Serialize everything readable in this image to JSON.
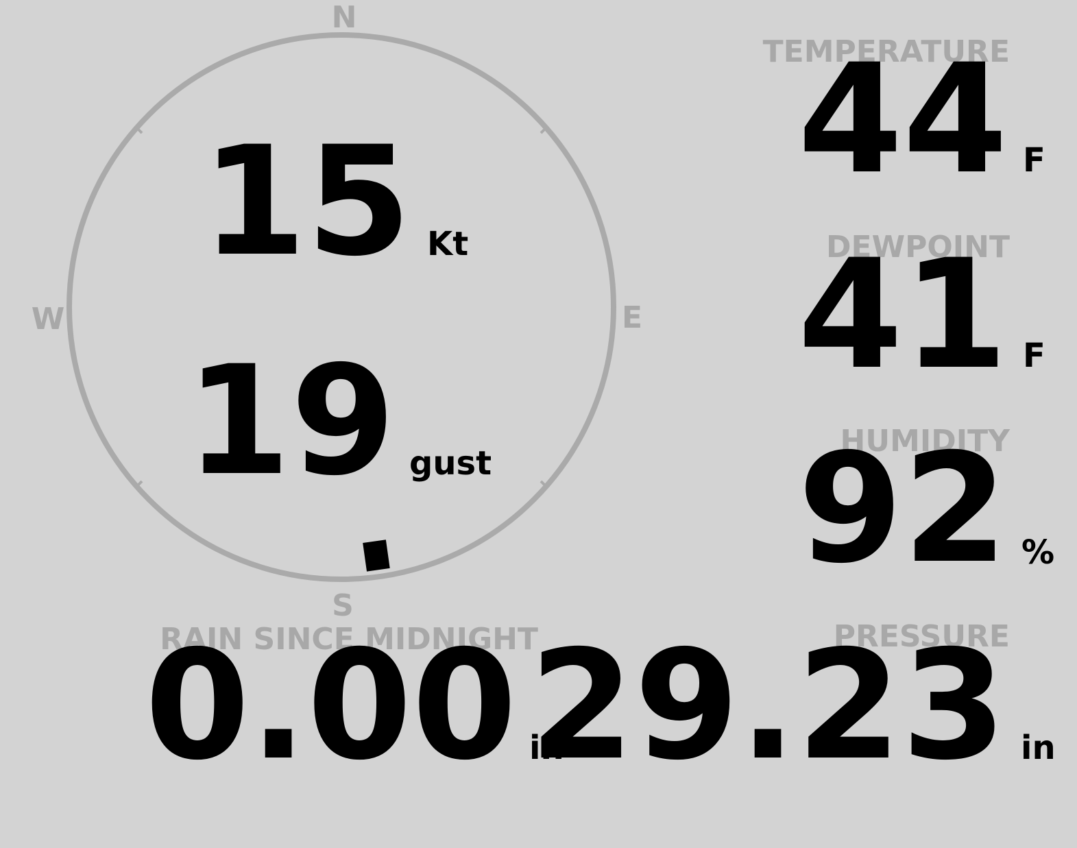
{
  "compass": {
    "north": "N",
    "east": "E",
    "south": "S",
    "west": "W",
    "wind_direction": 172
  },
  "wind": {
    "speed": "15",
    "speed_unit": "Kt",
    "gust": "19",
    "gust_unit": "gust"
  },
  "temperature": {
    "label": "TEMPERATURE",
    "value": "44",
    "unit": "F"
  },
  "dewpoint": {
    "label": "DEWPOINT",
    "value": "41",
    "unit": "F"
  },
  "humidity": {
    "label": "HUMIDITY",
    "value": "92",
    "unit": "%"
  },
  "pressure": {
    "label": "PRESSURE",
    "value": "29.23",
    "unit": "in"
  },
  "rain": {
    "label": "RAIN SINCE MIDNIGHT",
    "value": "0.00",
    "unit": "in"
  }
}
